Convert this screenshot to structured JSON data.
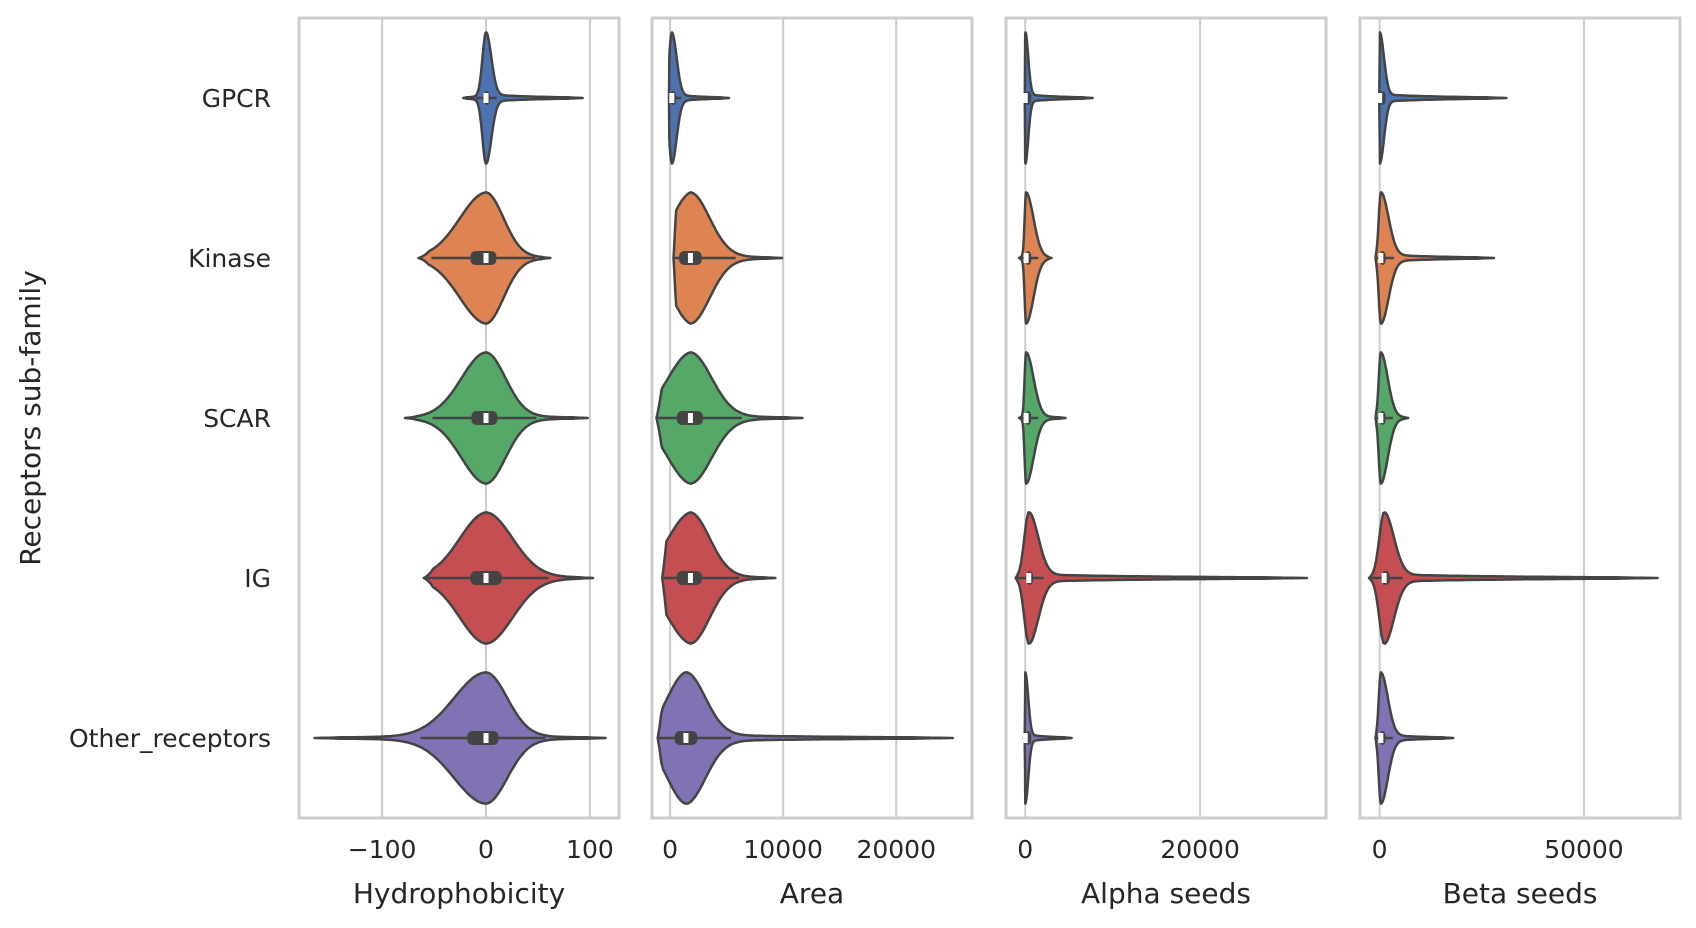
{
  "chart_data": {
    "type": "violin",
    "ylabel": "Receptors sub-family",
    "categories": [
      "GPCR",
      "Kinase",
      "SCAR",
      "IG",
      "Other_receptors"
    ],
    "colors": [
      "#4c72b0",
      "#dd8452",
      "#55a868",
      "#c44e52",
      "#8172b3"
    ],
    "grid": "vertical",
    "panels": [
      {
        "xlabel": "Hydrophobicity",
        "xlim": [
          -180,
          128
        ],
        "ticks": [
          -100,
          0,
          100
        ],
        "tick_labels": [
          "−100",
          "0",
          "100"
        ],
        "groups": [
          {
            "name": "GPCR",
            "min": -22,
            "q1": -2,
            "median": 0,
            "q3": 3,
            "max": 93,
            "width": 0.05
          },
          {
            "name": "Kinase",
            "min": -65,
            "q1": -15,
            "median": 0,
            "q3": 10,
            "max": 62,
            "width": 0.42
          },
          {
            "name": "SCAR",
            "min": -78,
            "q1": -14,
            "median": 0,
            "q3": 11,
            "max": 98,
            "width": 0.48
          },
          {
            "name": "IG",
            "min": -60,
            "q1": -15,
            "median": 0,
            "q3": 15,
            "max": 103,
            "width": 0.47
          },
          {
            "name": "Other_receptors",
            "min": -165,
            "q1": -18,
            "median": 0,
            "q3": 12,
            "max": 115,
            "width": 0.5
          }
        ]
      },
      {
        "xlabel": "Area",
        "xlim": [
          -1600,
          26700
        ],
        "ticks": [
          0,
          10000,
          20000
        ],
        "tick_labels": [
          "0",
          "10000",
          "20000"
        ],
        "groups": [
          {
            "name": "GPCR",
            "min": -100,
            "q1": 0,
            "median": 150,
            "q3": 400,
            "max": 5200,
            "width": 0.03
          },
          {
            "name": "Kinase",
            "min": 300,
            "q1": 800,
            "median": 1800,
            "q3": 2800,
            "max": 9900,
            "width": 0.16
          },
          {
            "name": "SCAR",
            "min": -1200,
            "q1": 600,
            "median": 1800,
            "q3": 2900,
            "max": 11700,
            "width": 0.18
          },
          {
            "name": "IG",
            "min": -700,
            "q1": 600,
            "median": 1800,
            "q3": 2800,
            "max": 9300,
            "width": 0.16
          },
          {
            "name": "Other_receptors",
            "min": -1100,
            "q1": 400,
            "median": 1400,
            "q3": 2400,
            "max": 25000,
            "width": 0.18
          }
        ]
      },
      {
        "xlabel": "Alpha seeds",
        "xlim": [
          -2200,
          34400
        ],
        "ticks": [
          0,
          20000
        ],
        "tick_labels": [
          "0",
          "20000"
        ],
        "groups": [
          {
            "name": "GPCR",
            "min": -100,
            "q1": 0,
            "median": 0,
            "q3": 200,
            "max": 7700,
            "width": 0.014
          },
          {
            "name": "Kinase",
            "min": -700,
            "q1": 0,
            "median": 100,
            "q3": 600,
            "max": 3000,
            "width": 0.02
          },
          {
            "name": "SCAR",
            "min": -700,
            "q1": 0,
            "median": 100,
            "q3": 600,
            "max": 4600,
            "width": 0.02
          },
          {
            "name": "IG",
            "min": -1100,
            "q1": 100,
            "median": 400,
            "q3": 900,
            "max": 32200,
            "width": 0.03
          },
          {
            "name": "Other_receptors",
            "min": -200,
            "q1": 0,
            "median": 0,
            "q3": 200,
            "max": 5300,
            "width": 0.014
          }
        ]
      },
      {
        "xlabel": "Beta seeds",
        "xlim": [
          -4800,
          73500
        ],
        "ticks": [
          0,
          50000
        ],
        "tick_labels": [
          "0",
          "50000"
        ],
        "groups": [
          {
            "name": "GPCR",
            "min": -100,
            "q1": 0,
            "median": 0,
            "q3": 400,
            "max": 31000,
            "width": 0.012
          },
          {
            "name": "Kinase",
            "min": -1000,
            "q1": 0,
            "median": 300,
            "q3": 1400,
            "max": 28000,
            "width": 0.025
          },
          {
            "name": "SCAR",
            "min": -1000,
            "q1": 0,
            "median": 300,
            "q3": 1300,
            "max": 7000,
            "width": 0.02
          },
          {
            "name": "IG",
            "min": -2600,
            "q1": 400,
            "median": 1100,
            "q3": 2500,
            "max": 68000,
            "width": 0.04
          },
          {
            "name": "Other_receptors",
            "min": -1000,
            "q1": 0,
            "median": 300,
            "q3": 1300,
            "max": 18000,
            "width": 0.02
          }
        ]
      }
    ]
  }
}
